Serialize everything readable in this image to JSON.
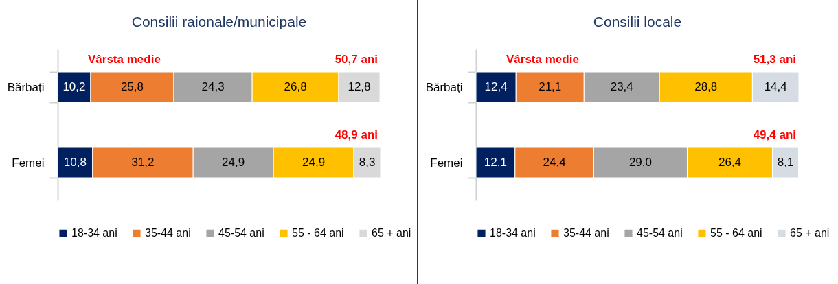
{
  "chart_data": [
    {
      "type": "bar",
      "title": "Consilii raionale/municipale",
      "orientation": "horizontal",
      "stacked": true,
      "legend": "bottom",
      "categories": [
        "Bărbați",
        "Femei"
      ],
      "series": [
        {
          "name": "18-34 ani",
          "color": "#002060",
          "values": [
            10.2,
            10.8
          ],
          "value_labels": [
            "10,2",
            "10,8"
          ]
        },
        {
          "name": "35-44 ani",
          "color": "#ed7d31",
          "values": [
            25.8,
            31.2
          ],
          "value_labels": [
            "25,8",
            "31,2"
          ]
        },
        {
          "name": "45-54 ani",
          "color": "#a5a5a5",
          "values": [
            24.3,
            24.9
          ],
          "value_labels": [
            "24,3",
            "24,9"
          ]
        },
        {
          "name": "55 - 64 ani",
          "color": "#ffc000",
          "values": [
            26.8,
            24.9
          ],
          "value_labels": [
            "26,8",
            "24,9"
          ]
        },
        {
          "name": "65 + ani",
          "color": "#d9d9d9",
          "values": [
            12.8,
            8.3
          ],
          "value_labels": [
            "12,8",
            "8,3"
          ]
        }
      ],
      "annotations": [
        "Vârsta medie",
        "50,7 ani",
        "48,9 ani"
      ]
    },
    {
      "type": "bar",
      "title": "Consilii locale",
      "orientation": "horizontal",
      "stacked": true,
      "legend": "bottom",
      "categories": [
        "Bărbați",
        "Femei"
      ],
      "series": [
        {
          "name": "18-34 ani",
          "color": "#002060",
          "values": [
            12.4,
            12.1
          ],
          "value_labels": [
            "12,4",
            "12,1"
          ]
        },
        {
          "name": "35-44 ani",
          "color": "#ed7d31",
          "values": [
            21.1,
            24.4
          ],
          "value_labels": [
            "21,1",
            "24,4"
          ]
        },
        {
          "name": "45-54 ani",
          "color": "#a5a5a5",
          "values": [
            23.4,
            29.0
          ],
          "value_labels": [
            "23,4",
            "29,0"
          ]
        },
        {
          "name": "55 - 64 ani",
          "color": "#ffc000",
          "values": [
            28.8,
            26.4
          ],
          "value_labels": [
            "28,8",
            "26,4"
          ]
        },
        {
          "name": "65 + ani",
          "color": "#d6dce4",
          "values": [
            14.4,
            8.1
          ],
          "value_labels": [
            "14,4",
            "8,1"
          ]
        }
      ],
      "annotations": [
        "Vârsta medie",
        "51,3 ani",
        "49,4 ani"
      ]
    }
  ]
}
